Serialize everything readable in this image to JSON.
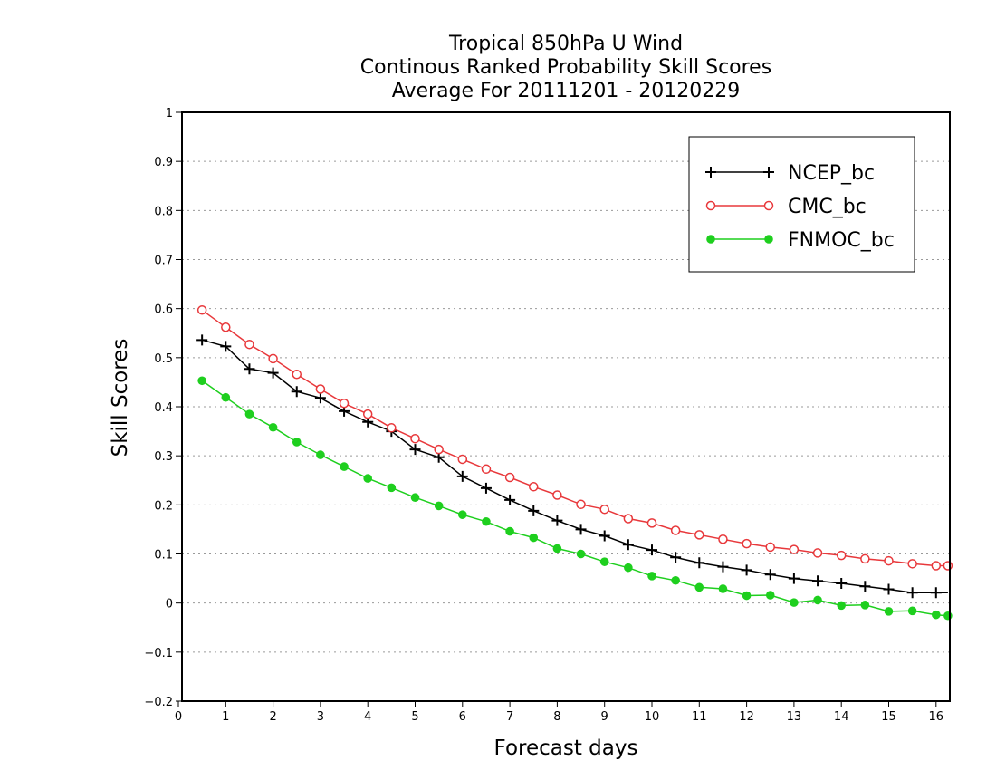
{
  "chart_data": {
    "type": "line",
    "title_lines": [
      "Tropical 850hPa U Wind",
      "Continous Ranked Probability Skill Scores",
      "Average For 20111201 - 20120229"
    ],
    "xlabel": "Forecast days",
    "ylabel": "Skill Scores",
    "xlim": [
      0,
      16.25
    ],
    "ylim": [
      -0.2,
      1
    ],
    "xticks": [
      0,
      1,
      2,
      3,
      4,
      5,
      6,
      7,
      8,
      9,
      10,
      11,
      12,
      13,
      14,
      15,
      16
    ],
    "xtick_labels": [
      "0",
      "1",
      "2",
      "3",
      "4",
      "5",
      "6",
      "7",
      "8",
      "9",
      "10",
      "11",
      "12",
      "13",
      "14",
      "15",
      "16"
    ],
    "yticks": [
      -0.2,
      -0.1,
      0,
      0.1,
      0.2,
      0.3,
      0.4,
      0.5,
      0.6,
      0.7,
      0.8,
      0.9,
      1
    ],
    "ytick_labels": [
      "−0.2",
      "−0.1",
      "0",
      "0.1",
      "0.2",
      "0.3",
      "0.4",
      "0.5",
      "0.6",
      "0.7",
      "0.8",
      "0.9",
      "1"
    ],
    "grid": "horizontal dotted",
    "legend_position": "top-right",
    "x": [
      0.5,
      1,
      1.5,
      2,
      2.5,
      3,
      3.5,
      4,
      4.5,
      5,
      5.5,
      6,
      6.5,
      7,
      7.5,
      8,
      8.5,
      9,
      9.5,
      10,
      10.5,
      11,
      11.5,
      12,
      12.5,
      13,
      13.5,
      14,
      14.5,
      15,
      15.5,
      16,
      16.25
    ],
    "series": [
      {
        "name": "NCEP_bc",
        "color": "#000000",
        "marker": "plus",
        "values": [
          0.536,
          0.523,
          0.477,
          0.469,
          0.431,
          0.418,
          0.391,
          0.369,
          0.35,
          0.313,
          0.297,
          0.258,
          0.234,
          0.21,
          0.188,
          0.168,
          0.15,
          0.137,
          0.119,
          0.108,
          0.093,
          0.082,
          0.074,
          0.067,
          0.058,
          0.05,
          0.045,
          0.04,
          0.034,
          0.028,
          0.021,
          0.021,
          0.021
        ]
      },
      {
        "name": "CMC_bc",
        "color": "#e8383b",
        "marker": "open-circle",
        "values": [
          0.597,
          0.562,
          0.527,
          0.498,
          0.466,
          0.436,
          0.407,
          0.385,
          0.357,
          0.335,
          0.313,
          0.293,
          0.273,
          0.256,
          0.237,
          0.22,
          0.201,
          0.191,
          0.172,
          0.163,
          0.148,
          0.139,
          0.13,
          0.121,
          0.114,
          0.109,
          0.102,
          0.097,
          0.09,
          0.086,
          0.08,
          0.076,
          0.076
        ]
      },
      {
        "name": "FNMOC_bc",
        "color": "#1ecf1e",
        "marker": "filled-circle",
        "values": [
          0.453,
          0.419,
          0.385,
          0.358,
          0.328,
          0.302,
          0.278,
          0.254,
          0.235,
          0.215,
          0.198,
          0.18,
          0.166,
          0.146,
          0.133,
          0.111,
          0.1,
          0.084,
          0.072,
          0.055,
          0.046,
          0.032,
          0.029,
          0.015,
          0.016,
          0.001,
          0.006,
          -0.005,
          -0.004,
          -0.017,
          -0.016,
          -0.024,
          -0.026
        ]
      }
    ]
  }
}
